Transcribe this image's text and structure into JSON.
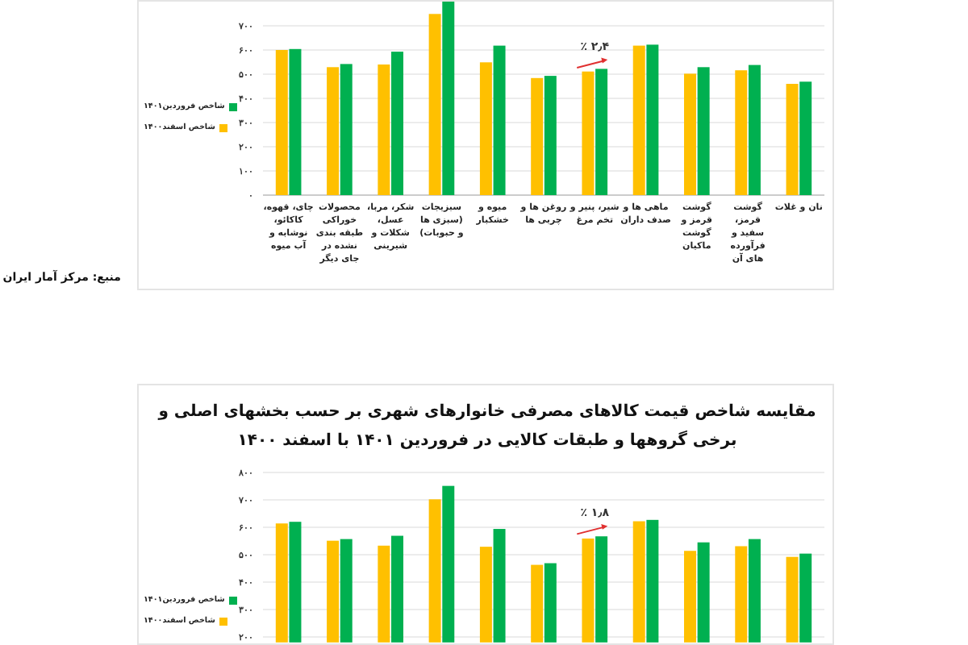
{
  "chart_data": [
    {
      "type": "bar",
      "categories": [
        "چای، قهوه، کاکائو، نوشابه و آب میوه",
        "محصولات خوراکی طبقه بندی نشده در جای دیگر",
        "شکر، مربا، عسل، شکلات و شیرینی",
        "سبزیجات (سبزی ها و حبوبات)",
        "میوه و خشکبار",
        "روغن ها و چربی ها",
        "شیر، پنیر و تخم مرغ",
        "ماهی ها و صدف داران",
        "گوشت قرمز و گوشت ماکیان",
        "گوشت قرمز، سفید و فرآورده های آن",
        "نان و غلات"
      ],
      "series": [
        {
          "name": "شاخص اسفند۱۴۰۰",
          "color": "#ffc000",
          "values": [
            600,
            529,
            540,
            749,
            549,
            484,
            511,
            618,
            502,
            516,
            460
          ]
        },
        {
          "name": "شاخص فروردین۱۴۰۱",
          "color": "#00b050",
          "values": [
            604,
            542,
            593,
            800,
            618,
            493,
            522,
            622,
            529,
            538,
            469
          ]
        }
      ],
      "ylim": [
        0,
        800
      ],
      "yticks": [
        {
          "value": 0,
          "label": "۰"
        },
        {
          "value": 100,
          "label": "۱۰۰"
        },
        {
          "value": 200,
          "label": "۲۰۰"
        },
        {
          "value": 300,
          "label": "۳۰۰"
        },
        {
          "value": 400,
          "label": "۴۰۰"
        },
        {
          "value": 500,
          "label": "۵۰۰"
        },
        {
          "value": 600,
          "label": "۶۰۰"
        },
        {
          "value": 700,
          "label": "۷۰۰"
        }
      ],
      "grid": "y",
      "legend": "left",
      "annotations": [
        "٪ ۲٫۴",
        "منبع: مرکز آمار ایران"
      ]
    },
    {
      "type": "bar",
      "title": "مقایسه شاخص قیمت کالاهای مصرفی خانوارهای شهری بر حسب بخشهای اصلی و برخی گروهها و طبقات کالایی در فروردین ۱۴۰۱ با اسفند ۱۴۰۰",
      "categories": [
        null,
        null,
        null,
        null,
        null,
        null,
        null,
        null,
        null,
        null,
        null
      ],
      "series": [
        {
          "name": "شاخص اسفند۱۴۰۰",
          "color": "#ffc000",
          "values": [
            614,
            551,
            533,
            702,
            529,
            463,
            559,
            622,
            514,
            531,
            492
          ]
        },
        {
          "name": "شاخص فروردین۱۴۰۱",
          "color": "#00b050",
          "values": [
            620,
            557,
            569,
            751,
            594,
            469,
            567,
            627,
            545,
            557,
            504
          ]
        }
      ],
      "ylim": [
        180,
        800
      ],
      "yticks": [
        {
          "value": 200,
          "label": "۲۰۰"
        },
        {
          "value": 300,
          "label": "۳۰۰"
        },
        {
          "value": 400,
          "label": "۴۰۰"
        },
        {
          "value": 500,
          "label": "۵۰۰"
        },
        {
          "value": 600,
          "label": "۶۰۰"
        },
        {
          "value": 700,
          "label": "۷۰۰"
        },
        {
          "value": 800,
          "label": "۸۰۰"
        }
      ],
      "grid": "y",
      "legend": "left",
      "annotations": [
        "٪ ۱٫۸"
      ]
    }
  ]
}
